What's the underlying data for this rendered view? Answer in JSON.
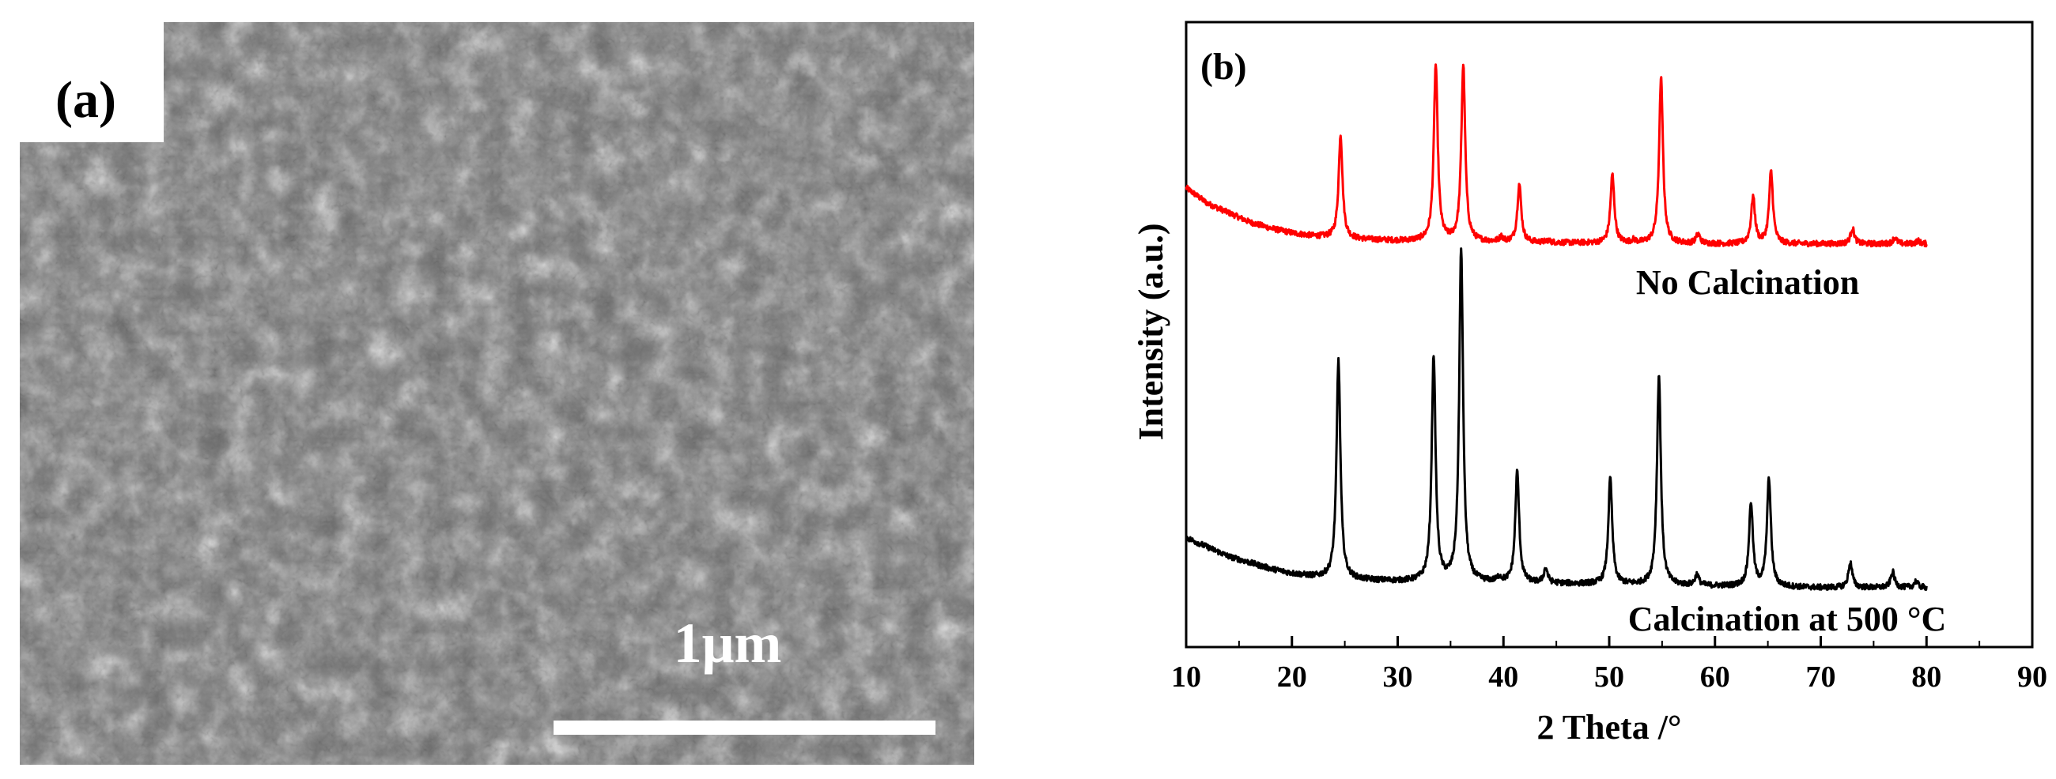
{
  "sem_panel": {
    "panel_label": "(a)",
    "scale_bar_label": "1μm"
  },
  "chart_data": {
    "type": "line",
    "panel_label": "(b)",
    "xlabel": "2 Theta /°",
    "ylabel": "Intensity (a.u.)",
    "xlim": [
      10,
      90
    ],
    "xticks": [
      10,
      20,
      30,
      40,
      50,
      60,
      70,
      80,
      90
    ],
    "y_ticks_shown": false,
    "grid": false,
    "series": [
      {
        "name": "No Calcination",
        "color": "#ff0000",
        "baseline": {
          "x": [
            10,
            12,
            14,
            16,
            18,
            20,
            22,
            24,
            26,
            30,
            40,
            50,
            60,
            70,
            80
          ],
          "y": [
            1.47,
            1.42,
            1.39,
            1.36,
            1.34,
            1.325,
            1.315,
            1.31,
            1.305,
            1.3,
            1.295,
            1.292,
            1.29,
            1.29,
            1.29
          ]
        },
        "peaks": [
          {
            "x": 24.6,
            "y": 1.64
          },
          {
            "x": 33.6,
            "y": 1.86
          },
          {
            "x": 36.2,
            "y": 1.86
          },
          {
            "x": 39.8,
            "y": 1.31
          },
          {
            "x": 41.5,
            "y": 1.48
          },
          {
            "x": 44.2,
            "y": 1.3
          },
          {
            "x": 50.3,
            "y": 1.51
          },
          {
            "x": 52.3,
            "y": 1.3
          },
          {
            "x": 54.9,
            "y": 1.82
          },
          {
            "x": 58.4,
            "y": 1.32
          },
          {
            "x": 63.6,
            "y": 1.44
          },
          {
            "x": 65.3,
            "y": 1.52
          },
          {
            "x": 73.0,
            "y": 1.34
          },
          {
            "x": 77.0,
            "y": 1.31
          },
          {
            "x": 79.2,
            "y": 1.3
          }
        ]
      },
      {
        "name": "Calcination at 500 °C",
        "color": "#000000",
        "baseline": {
          "x": [
            10,
            12,
            14,
            16,
            18,
            20,
            22,
            24,
            26,
            30,
            40,
            50,
            60,
            70,
            80
          ],
          "y": [
            0.35,
            0.32,
            0.29,
            0.27,
            0.25,
            0.235,
            0.225,
            0.22,
            0.215,
            0.21,
            0.205,
            0.2,
            0.195,
            0.19,
            0.19
          ]
        },
        "peaks": [
          {
            "x": 24.4,
            "y": 0.92
          },
          {
            "x": 33.4,
            "y": 0.93
          },
          {
            "x": 36.0,
            "y": 1.27
          },
          {
            "x": 39.6,
            "y": 0.22
          },
          {
            "x": 41.3,
            "y": 0.56
          },
          {
            "x": 44.0,
            "y": 0.25
          },
          {
            "x": 50.1,
            "y": 0.54
          },
          {
            "x": 54.7,
            "y": 0.87
          },
          {
            "x": 58.3,
            "y": 0.23
          },
          {
            "x": 63.4,
            "y": 0.46
          },
          {
            "x": 65.1,
            "y": 0.54
          },
          {
            "x": 72.8,
            "y": 0.27
          },
          {
            "x": 76.8,
            "y": 0.24
          },
          {
            "x": 79.0,
            "y": 0.21
          }
        ]
      }
    ],
    "annotations": [
      "No Calcination",
      "Calcination at 500 °C"
    ]
  }
}
